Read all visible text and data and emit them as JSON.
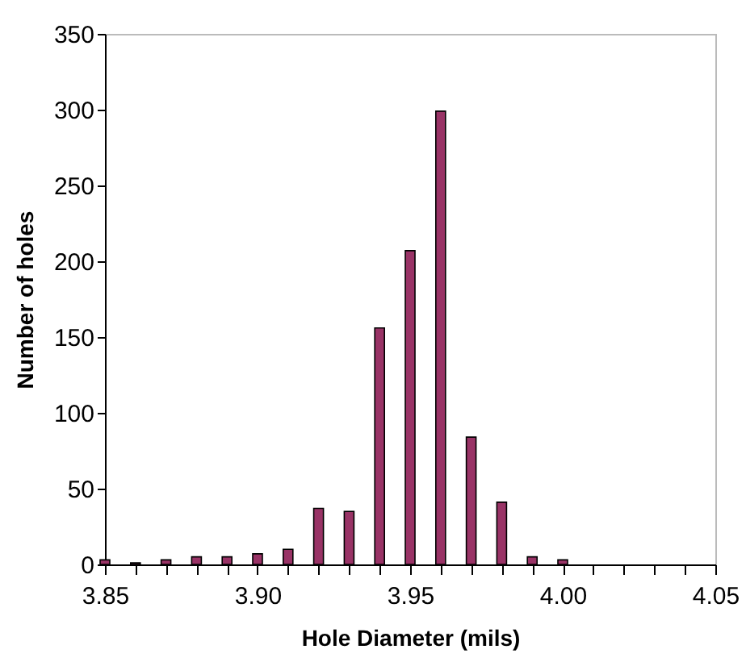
{
  "chart_data": {
    "type": "bar",
    "xlabel": "Hole Diameter (mils)",
    "ylabel": "Number of holes",
    "x": [
      3.85,
      3.86,
      3.87,
      3.88,
      3.89,
      3.9,
      3.91,
      3.92,
      3.93,
      3.94,
      3.95,
      3.96,
      3.97,
      3.98,
      3.99,
      4.0
    ],
    "values": [
      3,
      1,
      3,
      5,
      5,
      7,
      10,
      37,
      35,
      156,
      207,
      299,
      84,
      41,
      5,
      3
    ],
    "color": "#993366",
    "xlim": [
      3.85,
      4.05
    ],
    "xticks": [
      3.85,
      {
        "value": 3.86,
        "label": null
      },
      {
        "value": 3.87,
        "label": null
      },
      {
        "value": 3.88,
        "label": null
      },
      {
        "value": 3.89,
        "label": null
      },
      {
        "value": 3.9,
        "label": "3.90"
      },
      {
        "value": 3.91,
        "label": null
      },
      {
        "value": 3.92,
        "label": null
      },
      {
        "value": 3.93,
        "label": null
      },
      {
        "value": 3.94,
        "label": null
      },
      3.95,
      {
        "value": 3.96,
        "label": null
      },
      {
        "value": 3.97,
        "label": null
      },
      {
        "value": 3.98,
        "label": null
      },
      {
        "value": 3.99,
        "label": null
      },
      {
        "value": 4.0,
        "label": "4.00"
      },
      {
        "value": 4.01,
        "label": null
      },
      {
        "value": 4.02,
        "label": null
      },
      {
        "value": 4.03,
        "label": null
      },
      {
        "value": 4.04,
        "label": null
      },
      4.05
    ],
    "ylim": [
      0,
      350
    ],
    "yticks": [
      0,
      50,
      100,
      150,
      200,
      250,
      300,
      350
    ],
    "grid": false
  }
}
